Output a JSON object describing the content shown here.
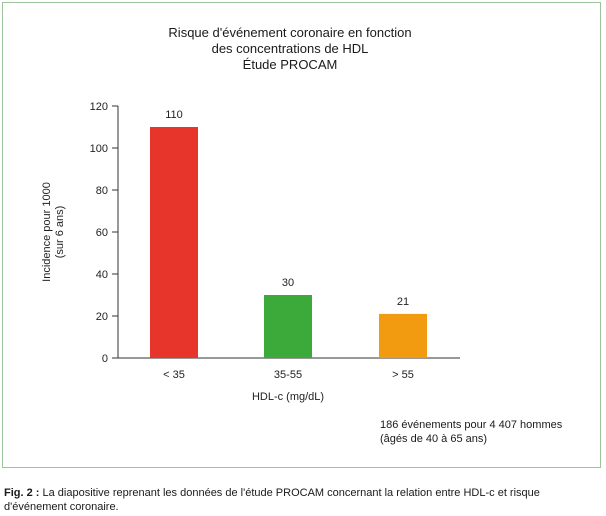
{
  "chart_data": {
    "type": "bar",
    "title_lines": [
      "Risque d'événement coronaire en fonction",
      "des concentrations de HDL",
      "Étude PROCAM"
    ],
    "ylabel_lines": [
      "Incidence pour 1000",
      "(sur 6 ans)"
    ],
    "xlabel": "HDL-c (mg/dL)",
    "categories": [
      "< 35",
      "35-55",
      "> 55"
    ],
    "values": [
      110,
      30,
      21
    ],
    "colors": [
      "#e8352c",
      "#3ca93b",
      "#f39b10"
    ],
    "ylim": [
      0,
      120
    ],
    "yticks": [
      0,
      20,
      40,
      60,
      80,
      100,
      120
    ],
    "grid": false,
    "legend": "none"
  },
  "note_lines": [
    "186 événements pour 4 407 hommes",
    "(âgés de 40 à 65 ans)"
  ],
  "caption": {
    "label": "Fig. 2 :",
    "text": "La diapositive reprenant les données de l'étude PROCAM concernant la relation entre HDL-c et risque d'événement coronaire."
  },
  "colors": {
    "frame": "#9ec29a",
    "axis": "#333333"
  }
}
